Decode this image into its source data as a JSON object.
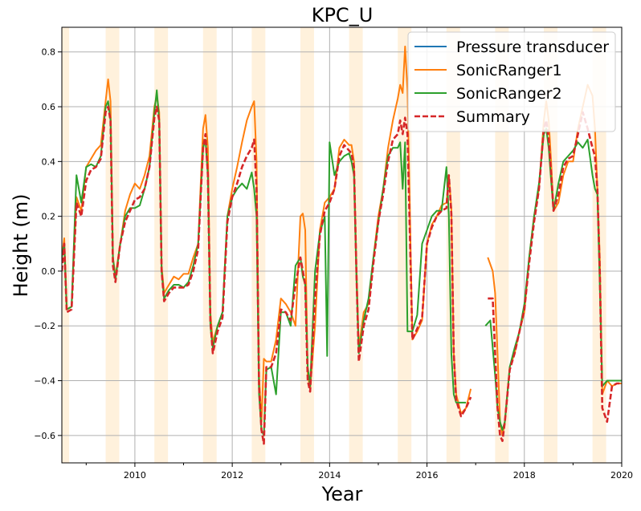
{
  "chart_data": {
    "type": "line",
    "title": "KPC_U",
    "xlabel": "Year",
    "ylabel": "Height (m)",
    "xlim": [
      2008.5,
      2020.0
    ],
    "ylim": [
      -0.7,
      0.89
    ],
    "x_ticks": [
      2010,
      2012,
      2014,
      2016,
      2018,
      2020
    ],
    "x_tick_labels": [
      "2010",
      "2012",
      "2014",
      "2016",
      "2018",
      "2020"
    ],
    "y_ticks": [
      -0.6,
      -0.4,
      -0.2,
      0.0,
      0.2,
      0.4,
      0.6,
      0.8
    ],
    "y_tick_labels": [
      "−0.6",
      "−0.4",
      "−0.2",
      "0.0",
      "0.2",
      "0.4",
      "0.6",
      "0.8"
    ],
    "grid": true,
    "legend_position": "top-right",
    "summer_bands": [
      [
        2008.5,
        2008.65
      ],
      [
        2009.4,
        2009.68
      ],
      [
        2010.4,
        2010.68
      ],
      [
        2011.4,
        2011.68
      ],
      [
        2012.4,
        2012.68
      ],
      [
        2013.4,
        2013.68
      ],
      [
        2014.4,
        2014.68
      ],
      [
        2015.4,
        2015.68
      ],
      [
        2016.4,
        2016.68
      ],
      [
        2017.4,
        2017.68
      ],
      [
        2018.4,
        2018.68
      ],
      [
        2019.4,
        2019.68
      ]
    ],
    "series": [
      {
        "name": "Pressure transducer",
        "color": "#1f77b4",
        "dash": false,
        "x": [],
        "y": []
      },
      {
        "name": "SonicRanger1",
        "color": "#ff7f0e",
        "dash": false,
        "x": [
          2008.5,
          2008.55,
          2008.6,
          2008.7,
          2008.8,
          2008.9,
          2009.0,
          2009.1,
          2009.2,
          2009.3,
          2009.4,
          2009.45,
          2009.5,
          2009.55,
          2009.6,
          2009.7,
          2009.8,
          2009.9,
          2010.0,
          2010.1,
          2010.2,
          2010.3,
          2010.4,
          2010.45,
          2010.5,
          2010.55,
          2010.6,
          2010.7,
          2010.8,
          2010.9,
          2011.0,
          2011.1,
          2011.2,
          2011.3,
          2011.4,
          2011.45,
          2011.5,
          2011.55,
          2011.6,
          2011.7,
          2011.8,
          2011.9,
          2012.0,
          2012.1,
          2012.2,
          2012.3,
          2012.4,
          2012.45,
          2012.5,
          2012.55,
          2012.6,
          2012.65,
          2012.7,
          2012.8,
          2012.9,
          2013.0,
          2013.1,
          2013.2,
          2013.3,
          2013.4,
          2013.45,
          2013.5,
          2013.55,
          2013.6,
          2013.7,
          2013.8,
          2013.9,
          2014.0,
          2014.1,
          2014.2,
          2014.3,
          2014.4,
          2014.45,
          2014.5,
          2014.55,
          2014.6,
          2014.7,
          2014.8,
          2014.9,
          2015.0,
          2015.1,
          2015.2,
          2015.3,
          2015.4,
          2015.45,
          2015.5,
          2015.55,
          2015.6,
          2015.7,
          2015.8,
          2015.9,
          2016.0,
          2016.1,
          2016.2,
          2016.3,
          2016.4,
          2016.45,
          2016.5,
          2016.55,
          2016.6,
          2016.7,
          2016.8,
          2016.9,
          null,
          2017.25,
          2017.35,
          2017.4,
          2017.45,
          2017.5,
          2017.55,
          2017.6,
          2017.7,
          2017.8,
          2017.9,
          2018.0,
          2018.1,
          2018.2,
          2018.3,
          2018.4,
          2018.45,
          2018.5,
          2018.55,
          2018.6,
          2018.7,
          2018.8,
          2018.9,
          2019.0,
          2019.1,
          2019.2,
          2019.3,
          2019.4,
          2019.45,
          2019.5,
          2019.55,
          2019.6,
          2019.7,
          2019.8,
          2019.9,
          2020.0
        ],
        "y": [
          0.05,
          0.12,
          -0.14,
          -0.13,
          0.27,
          0.22,
          0.38,
          0.41,
          0.44,
          0.46,
          0.62,
          0.7,
          0.62,
          0.05,
          -0.02,
          0.1,
          0.22,
          0.28,
          0.32,
          0.3,
          0.35,
          0.42,
          0.6,
          0.64,
          0.58,
          0.02,
          -0.08,
          -0.05,
          -0.02,
          -0.03,
          -0.01,
          -0.01,
          0.05,
          0.1,
          0.52,
          0.57,
          0.45,
          -0.15,
          -0.26,
          -0.2,
          -0.15,
          0.2,
          0.3,
          0.38,
          0.47,
          0.55,
          0.6,
          0.62,
          0.4,
          -0.38,
          -0.55,
          -0.32,
          -0.33,
          -0.33,
          -0.25,
          -0.1,
          -0.12,
          -0.15,
          -0.2,
          0.2,
          0.21,
          0.15,
          -0.38,
          -0.43,
          -0.2,
          0.15,
          0.25,
          0.27,
          0.3,
          0.45,
          0.48,
          0.46,
          0.46,
          0.4,
          0.02,
          -0.28,
          -0.15,
          -0.12,
          0.05,
          0.2,
          0.3,
          0.45,
          0.55,
          0.63,
          0.68,
          0.65,
          0.82,
          0.66,
          -0.25,
          -0.22,
          -0.18,
          0.1,
          0.17,
          0.2,
          0.24,
          0.25,
          0.35,
          0.23,
          -0.3,
          -0.45,
          -0.52,
          -0.5,
          -0.43,
          null,
          0.05,
          0.0,
          -0.08,
          -0.3,
          -0.55,
          -0.6,
          -0.55,
          -0.35,
          -0.3,
          -0.22,
          -0.15,
          0.05,
          0.2,
          0.3,
          0.55,
          0.62,
          0.55,
          0.4,
          0.22,
          0.25,
          0.35,
          0.4,
          0.4,
          0.52,
          0.6,
          0.68,
          0.64,
          0.52,
          0.3,
          0.05,
          -0.45,
          -0.4,
          -0.42,
          -0.41,
          -0.41
        ]
      },
      {
        "name": "SonicRanger2",
        "color": "#2ca02c",
        "dash": false,
        "x": [
          2008.5,
          2008.55,
          2008.6,
          2008.7,
          2008.8,
          2008.9,
          2009.0,
          2009.1,
          2009.2,
          2009.3,
          2009.4,
          2009.45,
          2009.5,
          2009.55,
          2009.6,
          2009.7,
          2009.8,
          2009.9,
          2010.0,
          2010.1,
          2010.2,
          2010.3,
          2010.4,
          2010.45,
          2010.5,
          2010.55,
          2010.6,
          2010.7,
          2010.8,
          2010.9,
          2011.0,
          2011.1,
          2011.2,
          2011.3,
          2011.4,
          2011.45,
          2011.5,
          2011.55,
          2011.6,
          2011.7,
          2011.8,
          2011.9,
          2012.0,
          2012.1,
          2012.2,
          2012.3,
          2012.4,
          2012.45,
          2012.5,
          2012.55,
          2012.6,
          2012.65,
          2012.7,
          2012.8,
          2012.9,
          2013.0,
          2013.1,
          2013.2,
          2013.3,
          2013.4,
          2013.45,
          2013.5,
          2013.55,
          2013.6,
          2013.7,
          2013.8,
          2013.9,
          2013.95,
          2014.0,
          2014.1,
          2014.2,
          2014.3,
          2014.4,
          2014.45,
          2014.5,
          2014.55,
          2014.6,
          2014.7,
          2014.8,
          2014.9,
          2015.0,
          2015.1,
          2015.2,
          2015.3,
          2015.4,
          2015.45,
          2015.5,
          2015.55,
          2015.6,
          2015.7,
          2015.8,
          2015.9,
          2016.0,
          2016.1,
          2016.2,
          2016.3,
          2016.4,
          2016.45,
          2016.5,
          2016.55,
          2016.6,
          2016.7,
          2016.8,
          null,
          2017.2,
          2017.3,
          2017.4,
          2017.45,
          2017.5,
          2017.55,
          2017.6,
          2017.7,
          2017.8,
          2017.9,
          2018.0,
          2018.1,
          2018.2,
          2018.3,
          2018.4,
          2018.45,
          2018.5,
          2018.55,
          2018.6,
          2018.7,
          2018.8,
          2018.9,
          2019.0,
          2019.1,
          2019.2,
          2019.3,
          2019.4,
          2019.45,
          2019.5,
          2019.55,
          2019.6,
          2019.7,
          2019.8,
          2019.9,
          2020.0
        ],
        "y": [
          0.05,
          0.1,
          -0.14,
          -0.13,
          0.35,
          0.25,
          0.38,
          0.39,
          0.38,
          0.42,
          0.6,
          0.62,
          0.55,
          0.05,
          -0.03,
          0.1,
          0.2,
          0.23,
          0.23,
          0.24,
          0.3,
          0.38,
          0.58,
          0.66,
          0.55,
          0.0,
          -0.1,
          -0.07,
          -0.05,
          -0.05,
          -0.06,
          -0.04,
          0.02,
          0.1,
          0.45,
          0.48,
          0.35,
          -0.2,
          -0.28,
          -0.2,
          -0.15,
          0.2,
          0.27,
          0.3,
          0.32,
          0.3,
          0.36,
          0.3,
          0.2,
          -0.45,
          -0.58,
          -0.6,
          -0.36,
          -0.35,
          -0.45,
          -0.15,
          -0.15,
          -0.2,
          0.02,
          0.05,
          -0.02,
          -0.05,
          -0.35,
          -0.42,
          0.0,
          0.14,
          0.2,
          -0.31,
          0.47,
          0.35,
          0.4,
          0.42,
          0.43,
          0.4,
          0.35,
          -0.02,
          -0.3,
          -0.18,
          -0.1,
          0.05,
          0.18,
          0.3,
          0.42,
          0.45,
          0.45,
          0.47,
          0.3,
          0.47,
          -0.22,
          -0.22,
          -0.16,
          0.1,
          0.15,
          0.2,
          0.22,
          0.22,
          0.38,
          0.2,
          -0.3,
          -0.45,
          -0.48,
          -0.48,
          -0.48,
          null,
          -0.2,
          -0.18,
          -0.38,
          -0.5,
          -0.55,
          -0.58,
          -0.55,
          -0.35,
          -0.28,
          -0.22,
          -0.12,
          0.05,
          0.2,
          0.32,
          0.5,
          0.52,
          0.45,
          0.33,
          0.22,
          0.32,
          0.4,
          0.42,
          0.44,
          0.47,
          0.45,
          0.48,
          0.35,
          0.3,
          0.28,
          -0.05,
          -0.42,
          -0.4,
          -0.4,
          -0.4,
          -0.4
        ]
      },
      {
        "name": "Summary",
        "color": "#d62728",
        "dash": true,
        "x": [
          2008.5,
          2008.55,
          2008.6,
          2008.7,
          2008.8,
          2008.9,
          2009.0,
          2009.1,
          2009.2,
          2009.3,
          2009.4,
          2009.45,
          2009.5,
          2009.55,
          2009.6,
          2009.7,
          2009.8,
          2009.9,
          2010.0,
          2010.1,
          2010.2,
          2010.3,
          2010.4,
          2010.45,
          2010.5,
          2010.55,
          2010.6,
          2010.7,
          2010.8,
          2010.9,
          2011.0,
          2011.1,
          2011.2,
          2011.3,
          2011.4,
          2011.45,
          2011.5,
          2011.55,
          2011.6,
          2011.7,
          2011.8,
          2011.9,
          2012.0,
          2012.1,
          2012.2,
          2012.3,
          2012.4,
          2012.45,
          2012.5,
          2012.55,
          2012.6,
          2012.65,
          2012.7,
          2012.8,
          2012.9,
          2013.0,
          2013.1,
          2013.2,
          2013.3,
          2013.4,
          2013.45,
          2013.5,
          2013.55,
          2013.6,
          2013.7,
          2013.8,
          2013.9,
          2014.0,
          2014.1,
          2014.2,
          2014.3,
          2014.4,
          2014.45,
          2014.5,
          2014.55,
          2014.6,
          2014.7,
          2014.8,
          2014.9,
          2015.0,
          2015.1,
          2015.2,
          2015.3,
          2015.4,
          2015.45,
          2015.5,
          2015.55,
          2015.6,
          2015.7,
          2015.8,
          2015.9,
          2016.0,
          2016.1,
          2016.2,
          2016.3,
          2016.4,
          2016.45,
          2016.5,
          2016.55,
          2016.6,
          2016.7,
          2016.8,
          2016.9,
          null,
          2017.25,
          2017.35,
          2017.4,
          2017.45,
          2017.5,
          2017.55,
          2017.6,
          2017.7,
          2017.8,
          2017.9,
          2018.0,
          2018.1,
          2018.2,
          2018.3,
          2018.4,
          2018.45,
          2018.5,
          2018.55,
          2018.6,
          2018.7,
          2018.8,
          2018.9,
          2019.0,
          2019.1,
          2019.2,
          2019.3,
          2019.4,
          2019.45,
          2019.5,
          2019.55,
          2019.6,
          2019.7,
          2019.8,
          2019.9,
          2020.0
        ],
        "y": [
          0.0,
          0.1,
          -0.15,
          -0.14,
          0.25,
          0.2,
          0.33,
          0.37,
          0.38,
          0.41,
          0.58,
          0.6,
          0.55,
          0.02,
          -0.04,
          0.1,
          0.18,
          0.22,
          0.26,
          0.27,
          0.3,
          0.38,
          0.56,
          0.6,
          0.55,
          0.0,
          -0.11,
          -0.08,
          -0.06,
          -0.06,
          -0.06,
          -0.05,
          0.0,
          0.08,
          0.45,
          0.5,
          0.35,
          -0.18,
          -0.3,
          -0.22,
          -0.17,
          0.18,
          0.27,
          0.32,
          0.38,
          0.42,
          0.45,
          0.48,
          0.3,
          -0.42,
          -0.58,
          -0.63,
          -0.35,
          -0.35,
          -0.3,
          -0.14,
          -0.15,
          -0.18,
          -0.05,
          0.05,
          0.0,
          -0.05,
          -0.4,
          -0.44,
          -0.1,
          0.13,
          0.22,
          0.25,
          0.3,
          0.42,
          0.46,
          0.44,
          0.43,
          0.38,
          0.0,
          -0.33,
          -0.2,
          -0.14,
          0.03,
          0.18,
          0.28,
          0.4,
          0.48,
          0.5,
          0.55,
          0.5,
          0.56,
          0.5,
          -0.25,
          -0.21,
          -0.17,
          0.1,
          0.16,
          0.2,
          0.22,
          0.23,
          0.35,
          0.21,
          -0.3,
          -0.47,
          -0.53,
          -0.5,
          -0.46,
          null,
          -0.1,
          -0.1,
          -0.3,
          -0.5,
          -0.6,
          -0.62,
          -0.55,
          -0.36,
          -0.3,
          -0.22,
          -0.14,
          0.03,
          0.18,
          0.3,
          0.52,
          0.55,
          0.48,
          0.36,
          0.22,
          0.28,
          0.38,
          0.41,
          0.42,
          0.5,
          0.58,
          0.52,
          0.45,
          0.42,
          0.3,
          0.0,
          -0.5,
          -0.55,
          -0.42,
          -0.41,
          -0.41
        ]
      }
    ]
  }
}
